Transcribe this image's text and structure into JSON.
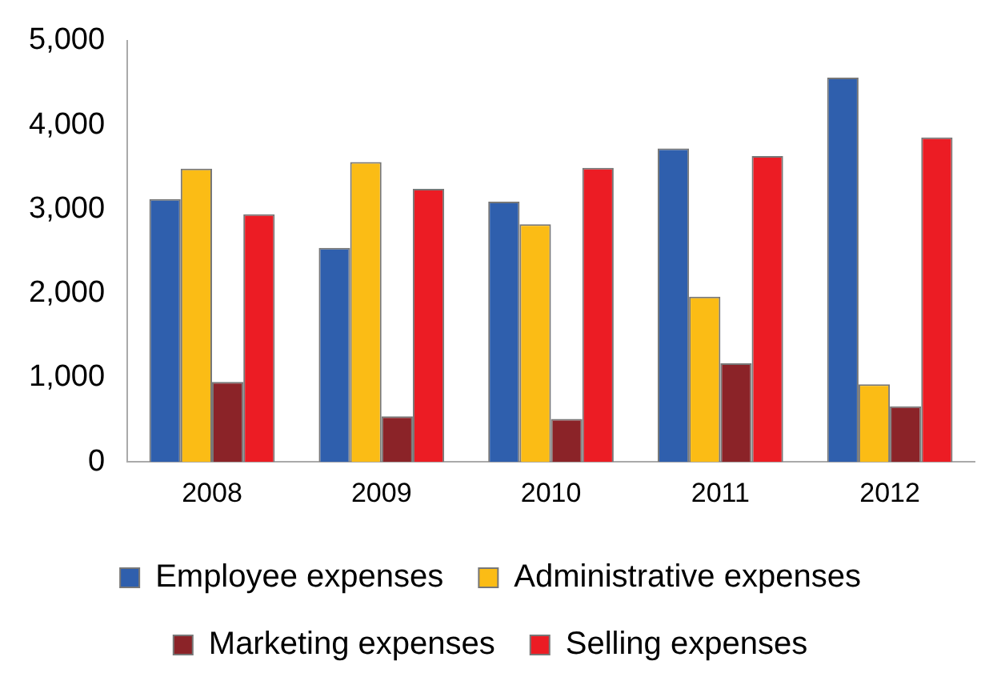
{
  "chart_data": {
    "type": "bar",
    "categories": [
      "2008",
      "2009",
      "2010",
      "2011",
      "2012"
    ],
    "series": [
      {
        "name": "Employee expenses",
        "color": "#2f5fad",
        "values": [
          3120,
          2540,
          3090,
          3720,
          4560
        ]
      },
      {
        "name": "Administrative expenses",
        "color": "#fbbc15",
        "values": [
          3480,
          3560,
          2820,
          1960,
          920
        ]
      },
      {
        "name": "Marketing expenses",
        "color": "#8b2328",
        "values": [
          950,
          540,
          510,
          1170,
          660
        ]
      },
      {
        "name": "Selling expenses",
        "color": "#ec1c24",
        "values": [
          2940,
          3240,
          3490,
          3630,
          3850
        ]
      }
    ],
    "ylim": [
      0,
      5000
    ],
    "yticks": [
      {
        "value": 0,
        "label": "0"
      },
      {
        "value": 1000,
        "label": "1,000"
      },
      {
        "value": 2000,
        "label": "2,000"
      },
      {
        "value": 3000,
        "label": "3,000"
      },
      {
        "value": 4000,
        "label": "4,000"
      },
      {
        "value": 5000,
        "label": "5,000"
      }
    ],
    "grid": false,
    "legend": "bottom"
  }
}
